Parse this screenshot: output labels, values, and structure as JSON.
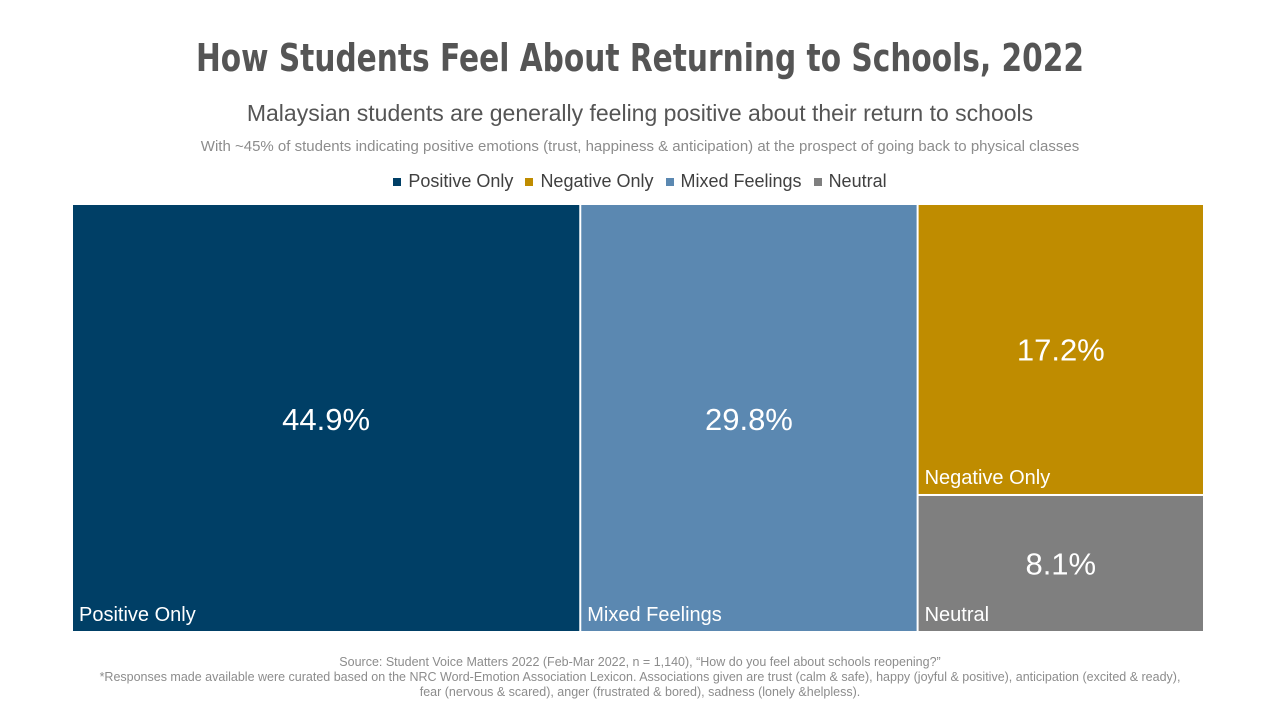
{
  "title": "How Students Feel About Returning to Schools, 2022",
  "subtitle": "Malaysian students are generally feeling positive about their return to schools",
  "note": "With ~45% of students indicating positive emotions (trust, happiness & anticipation) at the prospect of going back to physical classes",
  "legend": [
    {
      "label": "Positive Only",
      "color": "#003f66"
    },
    {
      "label": "Negative Only",
      "color": "#bf8c00"
    },
    {
      "label": "Mixed Feelings",
      "color": "#5b88b1"
    },
    {
      "label": "Neutral",
      "color": "#7f7f7f"
    }
  ],
  "chart_data": {
    "type": "treemap",
    "unit": "%",
    "tiles": [
      {
        "label": "Positive Only",
        "value": 44.9,
        "display": "44.9%",
        "color": "#003f66"
      },
      {
        "label": "Mixed Feelings",
        "value": 29.8,
        "display": "29.8%",
        "color": "#5b88b1"
      },
      {
        "label": "Negative Only",
        "value": 17.2,
        "display": "17.2%",
        "color": "#bf8c00"
      },
      {
        "label": "Neutral",
        "value": 8.1,
        "display": "8.1%",
        "color": "#7f7f7f"
      }
    ]
  },
  "source": {
    "line1": "Source: Student Voice Matters 2022 (Feb-Mar 2022, n = 1,140), “How do you feel about schools reopening?”",
    "line2": "*Responses made available were curated based on the NRC Word-Emotion Association Lexicon. Associations given are trust (calm & safe), happy (joyful & positive), anticipation (excited & ready),",
    "line3": "fear (nervous & scared), anger (frustrated & bored), sadness (lonely &helpless)."
  }
}
